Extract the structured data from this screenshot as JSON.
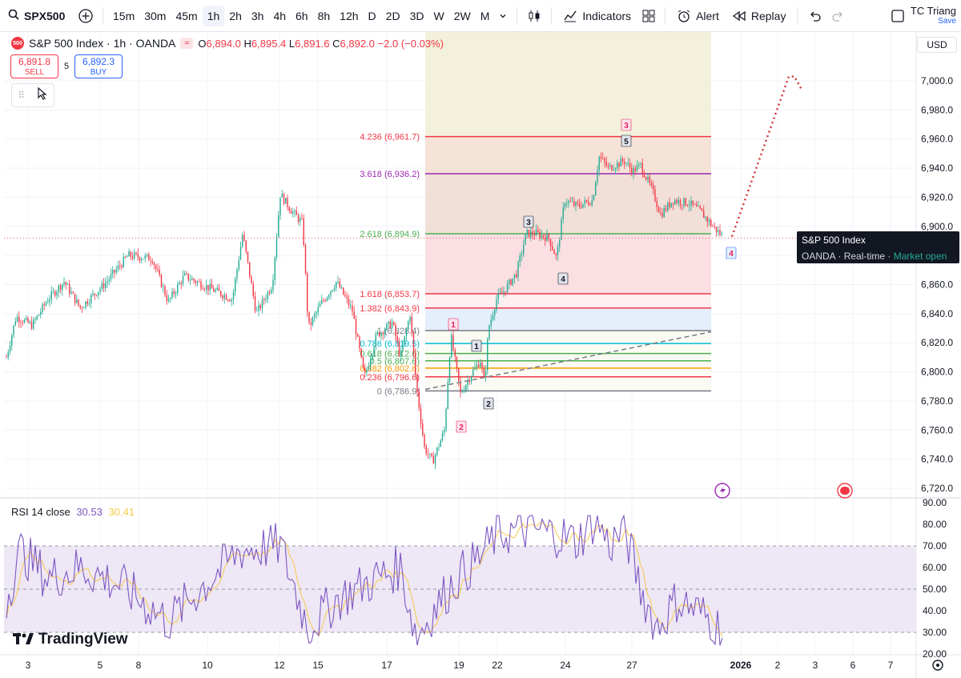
{
  "toolbar": {
    "symbol": "SPX500",
    "intervals": [
      "15m",
      "30m",
      "45m",
      "1h",
      "2h",
      "3h",
      "4h",
      "6h",
      "8h",
      "12h",
      "D",
      "2D",
      "3D",
      "W",
      "2W",
      "M"
    ],
    "active_interval": "1h",
    "indicators_label": "Indicators",
    "alert_label": "Alert",
    "replay_label": "Replay",
    "layout_name": "BTC Triang",
    "save_label": "Save"
  },
  "legend": {
    "badge": "500",
    "title": "S&P 500 Index · 1h · OANDA",
    "o_label": "O",
    "o": "6,894.0",
    "h_label": "H",
    "h": "6,895.4",
    "l_label": "L",
    "l": "6,891.6",
    "c_label": "C",
    "c": "6,892.0",
    "change": "−2.0 (−0.03%)"
  },
  "trade": {
    "sell_price": "6,891.8",
    "sell_label": "SELL",
    "spread": "5",
    "buy_price": "6,892.3",
    "buy_label": "BUY"
  },
  "currency": "USD",
  "tooltip": {
    "name": "S&P 500 Index",
    "source": "OANDA",
    "mode": "Real-time",
    "status": "Market open"
  },
  "rsi": {
    "label": "RSI 14 close",
    "value1": "30.53",
    "value2": "30.41"
  },
  "brand": "TradingView",
  "colors": {
    "up": "#22ab94",
    "down": "#f23645",
    "rsi": "#7e57c2",
    "rsi_ma": "#f7c948"
  },
  "price_axis": [
    "7,000.0",
    "6,980.0",
    "6,960.0",
    "6,940.0",
    "6,920.0",
    "6,900.0",
    "6,880.0",
    "6,860.0",
    "6,840.0",
    "6,820.0",
    "6,800.0",
    "6,780.0",
    "6,760.0",
    "6,740.0",
    "6,720.0"
  ],
  "rsi_axis": [
    "90.00",
    "80.00",
    "70.00",
    "60.00",
    "50.00",
    "40.00",
    "30.00",
    "20.00"
  ],
  "time_axis": [
    "3",
    "5",
    "8",
    "10",
    "12",
    "15",
    "17",
    "19",
    "22",
    "24",
    "27",
    "2026",
    "2",
    "3",
    "6",
    "7"
  ],
  "fib_levels": [
    {
      "label": "4.236 (6,961.7)",
      "value": 6961.7,
      "color": "#f23645"
    },
    {
      "label": "3.618 (6,936.2)",
      "value": 6936.2,
      "color": "#9c27b0"
    },
    {
      "label": "2.618 (6,894.9)",
      "value": 6894.9,
      "color": "#4caf50"
    },
    {
      "label": "1.618 (6,853.7)",
      "value": 6853.7,
      "color": "#f23645"
    },
    {
      "label": "1.382 (6,843.9)",
      "value": 6843.9,
      "color": "#f23645"
    },
    {
      "label": "1 (6,828.4)",
      "value": 6828.4,
      "color": "#787b86"
    },
    {
      "label": "0.786 (6,819.5)",
      "value": 6819.5,
      "color": "#00bcd4"
    },
    {
      "label": "0.618 (6,812.6)",
      "value": 6812.6,
      "color": "#4caf50"
    },
    {
      "label": "0.5 (6,807.6)",
      "value": 6807.6,
      "color": "#4caf50"
    },
    {
      "label": "0.382 (6,802.6)",
      "value": 6802.6,
      "color": "#ff9800"
    },
    {
      "label": "0.236 (6,796.6)",
      "value": 6796.6,
      "color": "#f23645"
    },
    {
      "label": "0 (6,786.9)",
      "value": 6786.9,
      "color": "#787b86"
    }
  ],
  "wave_labels": [
    {
      "text": "1",
      "style": "pink"
    },
    {
      "text": "2",
      "style": "pink"
    },
    {
      "text": "1",
      "style": "dark"
    },
    {
      "text": "2",
      "style": "dark"
    },
    {
      "text": "3",
      "style": "dark"
    },
    {
      "text": "4",
      "style": "dark"
    },
    {
      "text": "5",
      "style": "dark"
    },
    {
      "text": "3",
      "style": "pink"
    },
    {
      "text": "4",
      "style": "blue"
    }
  ]
}
